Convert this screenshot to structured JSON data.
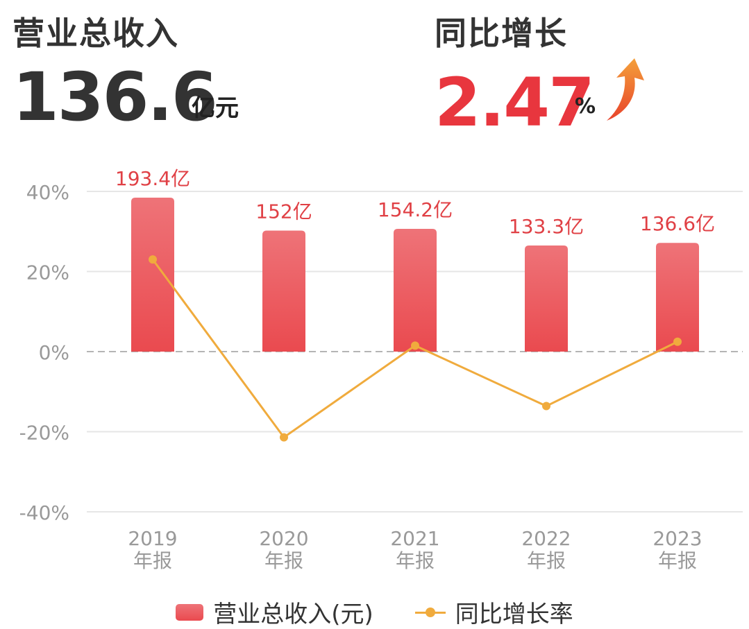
{
  "summary": {
    "revenue_title": "营业总收入",
    "revenue_value": "136.6",
    "revenue_unit": "亿元",
    "growth_title": "同比增长",
    "growth_value": "2.47",
    "growth_unit": "%",
    "growth_icon": "arrow-up-icon"
  },
  "colors": {
    "bar_top": "#ee7378",
    "bar_bottom": "#ea4a4f",
    "line": "#f0ab3d",
    "value_label": "#e04045",
    "growth_value": "#e8363e",
    "arrow_top": "#f4a03a",
    "arrow_bottom": "#e8432b"
  },
  "chart_data": {
    "type": "bar",
    "categories": [
      "2019\n年报",
      "2020\n年报",
      "2021\n年报",
      "2022\n年报",
      "2023\n年报"
    ],
    "series": [
      {
        "name": "营业总收入(元)",
        "type": "bar",
        "values": [
          193.4,
          152,
          154.2,
          133.3,
          136.6
        ],
        "labels": [
          "193.4亿",
          "152亿",
          "154.2亿",
          "133.3亿",
          "136.6亿"
        ]
      },
      {
        "name": "同比增长率",
        "type": "line",
        "values": [
          23.0,
          -21.4,
          1.5,
          -13.6,
          2.47
        ]
      }
    ],
    "y_ticks": [
      "40%",
      "20%",
      "0%",
      "-20%",
      "-40%"
    ],
    "ylim": [
      -40,
      40
    ],
    "grid": true,
    "legend": "bottom-center"
  }
}
